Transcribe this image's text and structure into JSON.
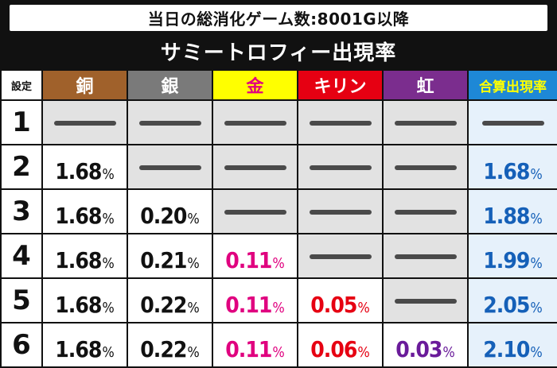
{
  "title": "当日の総消化ゲーム数:8001G以降",
  "subtitle": "サミートロフィー出現率",
  "headers": {
    "setting": "設定",
    "bronze": "銅",
    "silver": "銀",
    "gold": "金",
    "kirin": "キリン",
    "rainbow": "虹",
    "total": "合算出現率"
  },
  "percent_sign": "%",
  "rows": [
    {
      "setting": "1",
      "bronze": "",
      "silver": "",
      "gold": "",
      "kirin": "",
      "rainbow": "",
      "total": ""
    },
    {
      "setting": "2",
      "bronze": "1.68",
      "silver": "",
      "gold": "",
      "kirin": "",
      "rainbow": "",
      "total": "1.68"
    },
    {
      "setting": "3",
      "bronze": "1.68",
      "silver": "0.20",
      "gold": "",
      "kirin": "",
      "rainbow": "",
      "total": "1.88"
    },
    {
      "setting": "4",
      "bronze": "1.68",
      "silver": "0.21",
      "gold": "0.11",
      "kirin": "",
      "rainbow": "",
      "total": "1.99"
    },
    {
      "setting": "5",
      "bronze": "1.68",
      "silver": "0.22",
      "gold": "0.11",
      "kirin": "0.05",
      "rainbow": "",
      "total": "2.05"
    },
    {
      "setting": "6",
      "bronze": "1.68",
      "silver": "0.22",
      "gold": "0.11",
      "kirin": "0.06",
      "rainbow": "0.03",
      "total": "2.10"
    }
  ],
  "colors": {
    "bronze": "#a0612b",
    "silver": "#7a7a7a",
    "gold": "#ffff00",
    "kirin": "#e60012",
    "rainbow": "#7b2d8e",
    "total": "#1e88d6",
    "gold_text": "#e0007f",
    "kirin_text": "#e60012",
    "rainbow_text": "#6a1b9a",
    "total_text": "#1560b8"
  }
}
